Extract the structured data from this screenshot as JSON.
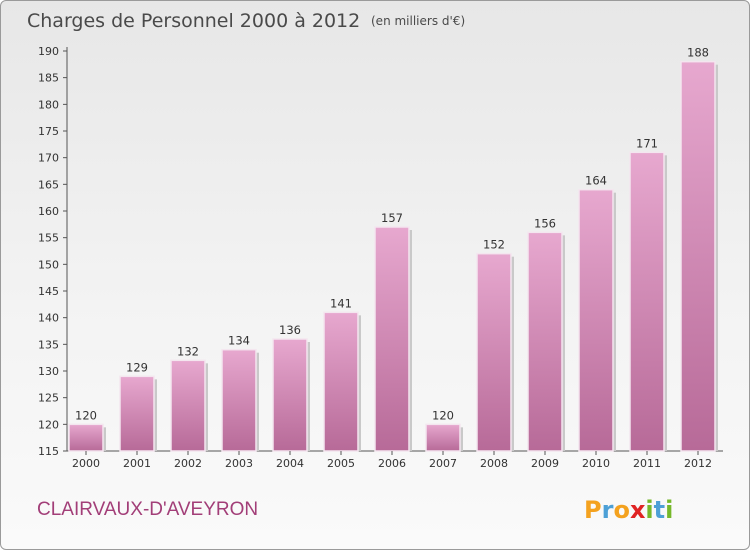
{
  "chart_data": {
    "type": "bar",
    "title": "Charges de Personnel 2000 à 2012",
    "subtitle": "(en milliers d'€)",
    "categories": [
      "2000",
      "2001",
      "2002",
      "2003",
      "2004",
      "2005",
      "2006",
      "2007",
      "2008",
      "2009",
      "2010",
      "2011",
      "2012"
    ],
    "values": [
      120,
      129,
      132,
      134,
      136,
      141,
      157,
      120,
      152,
      156,
      164,
      171,
      188
    ],
    "ylim": [
      115,
      190
    ],
    "yticks": [
      115,
      120,
      125,
      130,
      135,
      140,
      145,
      150,
      155,
      160,
      165,
      170,
      175,
      180,
      185,
      190
    ],
    "xlabel": "",
    "ylabel": "",
    "grid": false,
    "bar_color_top": "#e7a8cf",
    "bar_color_bottom": "#b76a98"
  },
  "footer": {
    "place": "CLAIRVAUX-D'AVEYRON",
    "logo_letters": [
      {
        "ch": "P",
        "color": "#f4a21f"
      },
      {
        "ch": "r",
        "color": "#4da0d6"
      },
      {
        "ch": "o",
        "color": "#f4a21f"
      },
      {
        "ch": "x",
        "color": "#e02323"
      },
      {
        "ch": "i",
        "color": "#76b82a"
      },
      {
        "ch": "t",
        "color": "#4da0d6"
      },
      {
        "ch": "i",
        "color": "#76b82a"
      }
    ]
  }
}
